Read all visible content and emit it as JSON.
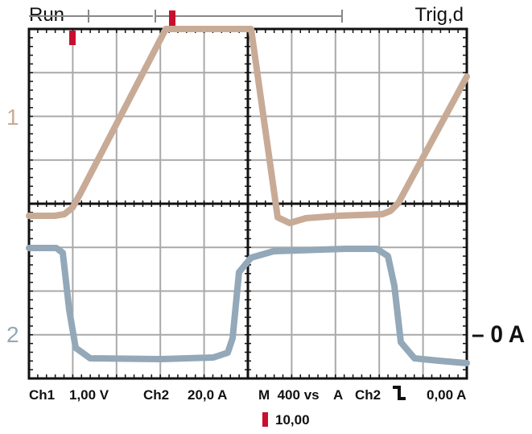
{
  "status": {
    "run": "Run",
    "trigger": "Trig,d"
  },
  "channels": [
    {
      "number": "1",
      "color": "#c8ab96"
    },
    {
      "number": "2",
      "color": "#93a8b8"
    }
  ],
  "ch2_marker": "– 0 A",
  "readouts": {
    "ch1_label": "Ch1",
    "ch1_scale": "1,00 V",
    "ch2_label": "Ch2",
    "ch2_scale": "20,0 A",
    "timebase": "M  400 vs",
    "trig_source_label": "A",
    "trig_source": "Ch2",
    "trig_level": "0,00 A",
    "trig_offset": "10,00"
  },
  "colors": {
    "marker": "#c8102e",
    "grid": "#a9a9a9",
    "frame": "#111111"
  },
  "icons": {
    "trig_edge": "falling-edge-icon"
  }
}
